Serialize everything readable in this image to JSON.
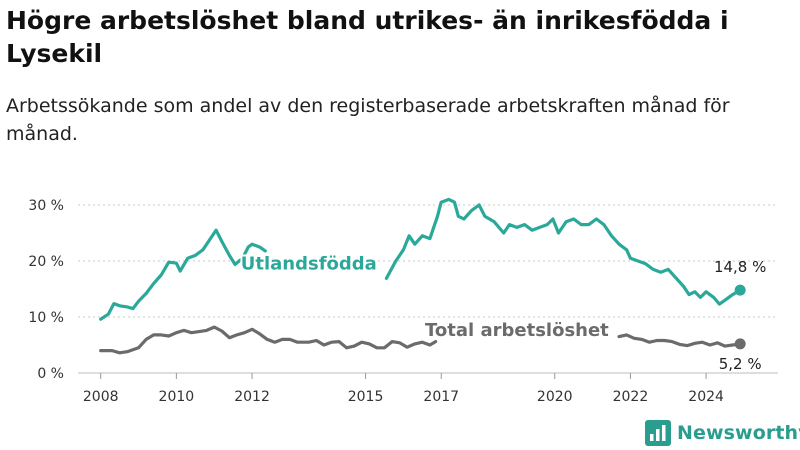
{
  "header": {
    "title": "Högre arbetslöshet bland utrikes- än inrikesfödda i Lysekil",
    "subtitle": "Arbetssökande som andel av den registerbaserade arbetskraften månad för månad."
  },
  "brand": {
    "name": "Newsworthy",
    "icon": "bar-chart-logo-icon",
    "color": "#2a9d8f"
  },
  "chart_data": {
    "type": "line",
    "x_unit": "year",
    "xlim": [
      2007.4,
      2025.9
    ],
    "ylim": [
      0,
      30
    ],
    "yticks": [
      0,
      10,
      20,
      30
    ],
    "ytick_labels": [
      "0 %",
      "10 %",
      "20 %",
      "30 %"
    ],
    "xticks": [
      2008,
      2010,
      2012,
      2015,
      2017,
      2020,
      2022,
      2024
    ],
    "xtick_labels": [
      "2008",
      "2010",
      "2012",
      "2015",
      "2017",
      "2020",
      "2022",
      "2024"
    ],
    "grid": "horizontal dotted",
    "series": [
      {
        "name": "Utlandsfödda",
        "color": "#2aa89a",
        "end_label": "14,8 %",
        "points": [
          [
            2008.0,
            9.6
          ],
          [
            2008.2,
            10.5
          ],
          [
            2008.35,
            12.4
          ],
          [
            2008.5,
            12.0
          ],
          [
            2008.7,
            11.8
          ],
          [
            2008.85,
            11.5
          ],
          [
            2009.0,
            12.8
          ],
          [
            2009.2,
            14.2
          ],
          [
            2009.4,
            16.0
          ],
          [
            2009.6,
            17.5
          ],
          [
            2009.8,
            19.8
          ],
          [
            2010.0,
            19.6
          ],
          [
            2010.1,
            18.2
          ],
          [
            2010.3,
            20.5
          ],
          [
            2010.5,
            21.0
          ],
          [
            2010.7,
            22.0
          ],
          [
            2010.9,
            24.0
          ],
          [
            2011.05,
            25.5
          ],
          [
            2011.2,
            23.5
          ],
          [
            2011.4,
            21.0
          ],
          [
            2011.55,
            19.4
          ],
          [
            2011.75,
            20.5
          ],
          [
            2011.9,
            22.5
          ],
          [
            2012.0,
            23.0
          ],
          [
            2012.2,
            22.5
          ],
          [
            2012.35,
            21.8
          ],
          [
            2015.55,
            16.9
          ],
          [
            2015.8,
            20.0
          ],
          [
            2016.0,
            22.0
          ],
          [
            2016.15,
            24.5
          ],
          [
            2016.3,
            23.0
          ],
          [
            2016.5,
            24.5
          ],
          [
            2016.7,
            24.0
          ],
          [
            2016.9,
            28.0
          ],
          [
            2017.0,
            30.5
          ],
          [
            2017.2,
            31.0
          ],
          [
            2017.35,
            30.5
          ],
          [
            2017.45,
            28.0
          ],
          [
            2017.6,
            27.5
          ],
          [
            2017.8,
            29.0
          ],
          [
            2018.0,
            30.0
          ],
          [
            2018.15,
            28.0
          ],
          [
            2018.4,
            27.0
          ],
          [
            2018.65,
            25.0
          ],
          [
            2018.8,
            26.5
          ],
          [
            2019.0,
            26.0
          ],
          [
            2019.2,
            26.5
          ],
          [
            2019.4,
            25.5
          ],
          [
            2019.6,
            26.0
          ],
          [
            2019.8,
            26.5
          ],
          [
            2019.95,
            27.5
          ],
          [
            2020.1,
            25.0
          ],
          [
            2020.3,
            27.0
          ],
          [
            2020.5,
            27.5
          ],
          [
            2020.7,
            26.5
          ],
          [
            2020.9,
            26.5
          ],
          [
            2021.1,
            27.5
          ],
          [
            2021.3,
            26.5
          ],
          [
            2021.5,
            24.5
          ],
          [
            2021.7,
            23.0
          ],
          [
            2021.9,
            22.0
          ],
          [
            2022.0,
            20.5
          ],
          [
            2022.2,
            20.0
          ],
          [
            2022.4,
            19.5
          ],
          [
            2022.6,
            18.5
          ],
          [
            2022.8,
            18.0
          ],
          [
            2023.0,
            18.5
          ],
          [
            2023.2,
            17.0
          ],
          [
            2023.4,
            15.5
          ],
          [
            2023.55,
            14.0
          ],
          [
            2023.7,
            14.5
          ],
          [
            2023.85,
            13.5
          ],
          [
            2024.0,
            14.5
          ],
          [
            2024.2,
            13.5
          ],
          [
            2024.35,
            12.3
          ],
          [
            2024.5,
            13.0
          ],
          [
            2024.7,
            14.0
          ],
          [
            2024.9,
            14.8
          ]
        ]
      },
      {
        "name": "Total arbetslöshet",
        "color": "#6b6b6b",
        "end_label": "5,2 %",
        "points": [
          [
            2008.0,
            4.0
          ],
          [
            2008.3,
            4.0
          ],
          [
            2008.5,
            3.6
          ],
          [
            2008.7,
            3.8
          ],
          [
            2009.0,
            4.5
          ],
          [
            2009.2,
            6.0
          ],
          [
            2009.4,
            6.8
          ],
          [
            2009.6,
            6.8
          ],
          [
            2009.8,
            6.6
          ],
          [
            2010.0,
            7.2
          ],
          [
            2010.2,
            7.6
          ],
          [
            2010.4,
            7.2
          ],
          [
            2010.6,
            7.4
          ],
          [
            2010.8,
            7.6
          ],
          [
            2011.0,
            8.2
          ],
          [
            2011.2,
            7.5
          ],
          [
            2011.4,
            6.3
          ],
          [
            2011.6,
            6.8
          ],
          [
            2011.8,
            7.2
          ],
          [
            2012.0,
            7.8
          ],
          [
            2012.2,
            7.0
          ],
          [
            2012.4,
            6.0
          ],
          [
            2012.6,
            5.5
          ],
          [
            2012.8,
            6.0
          ],
          [
            2013.0,
            6.0
          ],
          [
            2013.2,
            5.5
          ],
          [
            2013.5,
            5.5
          ],
          [
            2013.7,
            5.8
          ],
          [
            2013.9,
            5.0
          ],
          [
            2014.1,
            5.5
          ],
          [
            2014.3,
            5.6
          ],
          [
            2014.5,
            4.5
          ],
          [
            2014.7,
            4.8
          ],
          [
            2014.9,
            5.5
          ],
          [
            2015.1,
            5.2
          ],
          [
            2015.3,
            4.5
          ],
          [
            2015.5,
            4.5
          ],
          [
            2015.7,
            5.6
          ],
          [
            2015.9,
            5.4
          ],
          [
            2016.1,
            4.6
          ],
          [
            2016.3,
            5.2
          ],
          [
            2016.5,
            5.5
          ],
          [
            2016.7,
            5.0
          ],
          [
            2016.85,
            5.6
          ],
          [
            2021.7,
            6.5
          ],
          [
            2021.9,
            6.8
          ],
          [
            2022.1,
            6.2
          ],
          [
            2022.3,
            6.0
          ],
          [
            2022.5,
            5.5
          ],
          [
            2022.7,
            5.8
          ],
          [
            2022.9,
            5.8
          ],
          [
            2023.1,
            5.6
          ],
          [
            2023.3,
            5.1
          ],
          [
            2023.5,
            4.9
          ],
          [
            2023.7,
            5.3
          ],
          [
            2023.9,
            5.5
          ],
          [
            2024.1,
            5.0
          ],
          [
            2024.3,
            5.4
          ],
          [
            2024.5,
            4.8
          ],
          [
            2024.7,
            5.0
          ],
          [
            2024.9,
            5.2
          ]
        ]
      }
    ],
    "annotations": [
      {
        "text": "Utlandsfödda",
        "series": 0,
        "x": 2013.5,
        "y": 18.5
      },
      {
        "text": "Total arbetslöshet",
        "series": 1,
        "x": 2019.0,
        "y": 6.6
      }
    ]
  }
}
